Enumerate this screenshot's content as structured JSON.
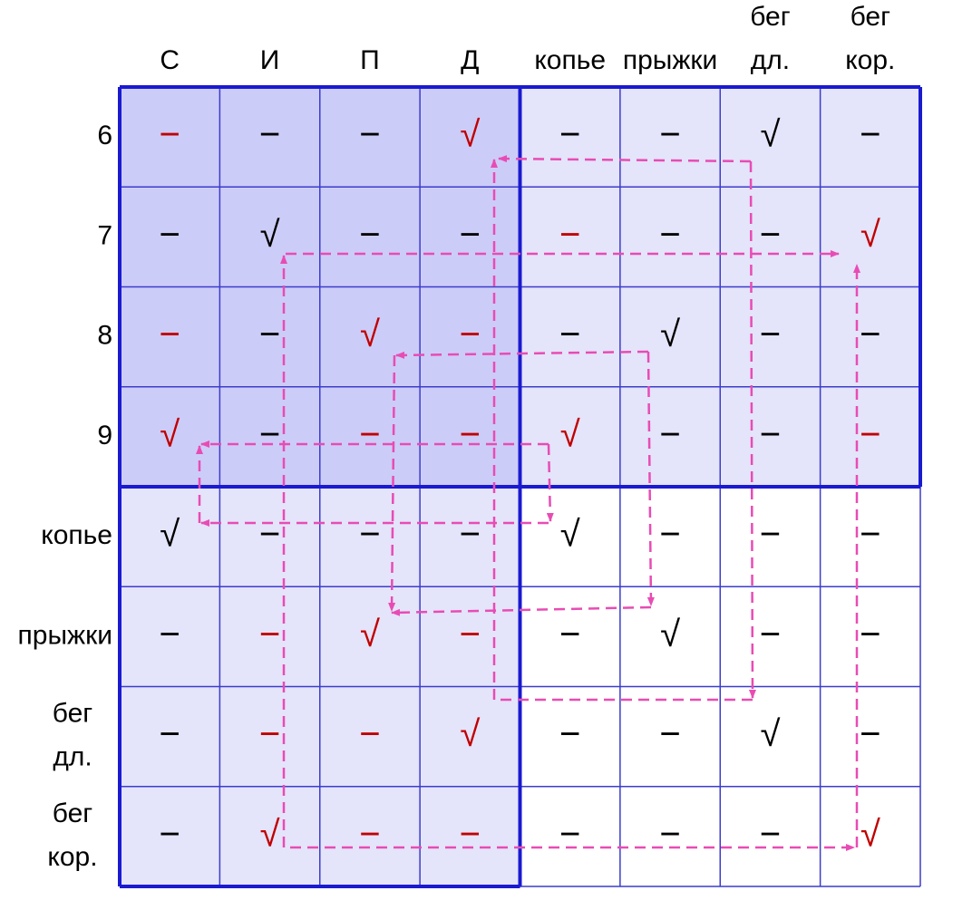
{
  "column_headers": [
    [
      "С"
    ],
    [
      "И"
    ],
    [
      "П"
    ],
    [
      "Д"
    ],
    [
      "копье"
    ],
    [
      "прыжки"
    ],
    [
      "бег",
      "дл."
    ],
    [
      "бег",
      "кор."
    ]
  ],
  "row_headers": [
    [
      "6"
    ],
    [
      "7"
    ],
    [
      "8"
    ],
    [
      "9"
    ],
    [
      "копье"
    ],
    [
      "прыжки"
    ],
    [
      "бег",
      "дл."
    ],
    [
      "бег",
      "кор."
    ]
  ],
  "cells": [
    [
      {
        "text": "−",
        "color": "#c00000"
      },
      {
        "text": "−",
        "color": "#000000"
      },
      {
        "text": "−",
        "color": "#000000"
      },
      {
        "text": "√",
        "color": "#c00000"
      },
      {
        "text": "−",
        "color": "#000000"
      },
      {
        "text": "−",
        "color": "#000000"
      },
      {
        "text": "√",
        "color": "#000000"
      },
      {
        "text": "−",
        "color": "#000000"
      }
    ],
    [
      {
        "text": "−",
        "color": "#000000"
      },
      {
        "text": "√",
        "color": "#000000"
      },
      {
        "text": "−",
        "color": "#000000"
      },
      {
        "text": "−",
        "color": "#000000"
      },
      {
        "text": "−",
        "color": "#c00000"
      },
      {
        "text": "−",
        "color": "#000000"
      },
      {
        "text": "−",
        "color": "#000000"
      },
      {
        "text": "√",
        "color": "#c00000"
      }
    ],
    [
      {
        "text": "−",
        "color": "#c00000"
      },
      {
        "text": "−",
        "color": "#000000"
      },
      {
        "text": "√",
        "color": "#c00000"
      },
      {
        "text": "−",
        "color": "#c00000"
      },
      {
        "text": "−",
        "color": "#000000"
      },
      {
        "text": "√",
        "color": "#000000"
      },
      {
        "text": "−",
        "color": "#000000"
      },
      {
        "text": "−",
        "color": "#000000"
      }
    ],
    [
      {
        "text": "√",
        "color": "#c00000"
      },
      {
        "text": "−",
        "color": "#000000"
      },
      {
        "text": "−",
        "color": "#c00000"
      },
      {
        "text": "−",
        "color": "#c00000"
      },
      {
        "text": "√",
        "color": "#c00000"
      },
      {
        "text": "−",
        "color": "#000000"
      },
      {
        "text": "−",
        "color": "#000000"
      },
      {
        "text": "−",
        "color": "#c00000"
      }
    ],
    [
      {
        "text": "√",
        "color": "#000000"
      },
      {
        "text": "−",
        "color": "#000000"
      },
      {
        "text": "−",
        "color": "#000000"
      },
      {
        "text": "−",
        "color": "#000000"
      },
      {
        "text": "√",
        "color": "#000000"
      },
      {
        "text": "−",
        "color": "#000000"
      },
      {
        "text": "−",
        "color": "#000000"
      },
      {
        "text": "−",
        "color": "#000000"
      }
    ],
    [
      {
        "text": "−",
        "color": "#000000"
      },
      {
        "text": "−",
        "color": "#c00000"
      },
      {
        "text": "√",
        "color": "#c00000"
      },
      {
        "text": "−",
        "color": "#c00000"
      },
      {
        "text": "−",
        "color": "#000000"
      },
      {
        "text": "√",
        "color": "#000000"
      },
      {
        "text": "−",
        "color": "#000000"
      },
      {
        "text": "−",
        "color": "#000000"
      }
    ],
    [
      {
        "text": "−",
        "color": "#000000"
      },
      {
        "text": "−",
        "color": "#c00000"
      },
      {
        "text": "−",
        "color": "#c00000"
      },
      {
        "text": "√",
        "color": "#c00000"
      },
      {
        "text": "−",
        "color": "#000000"
      },
      {
        "text": "−",
        "color": "#000000"
      },
      {
        "text": "√",
        "color": "#000000"
      },
      {
        "text": "−",
        "color": "#000000"
      }
    ],
    [
      {
        "text": "−",
        "color": "#000000"
      },
      {
        "text": "√",
        "color": "#c00000"
      },
      {
        "text": "−",
        "color": "#c00000"
      },
      {
        "text": "−",
        "color": "#c00000"
      },
      {
        "text": "−",
        "color": "#000000"
      },
      {
        "text": "−",
        "color": "#000000"
      },
      {
        "text": "−",
        "color": "#000000"
      },
      {
        "text": "√",
        "color": "#c00000"
      }
    ]
  ]
}
